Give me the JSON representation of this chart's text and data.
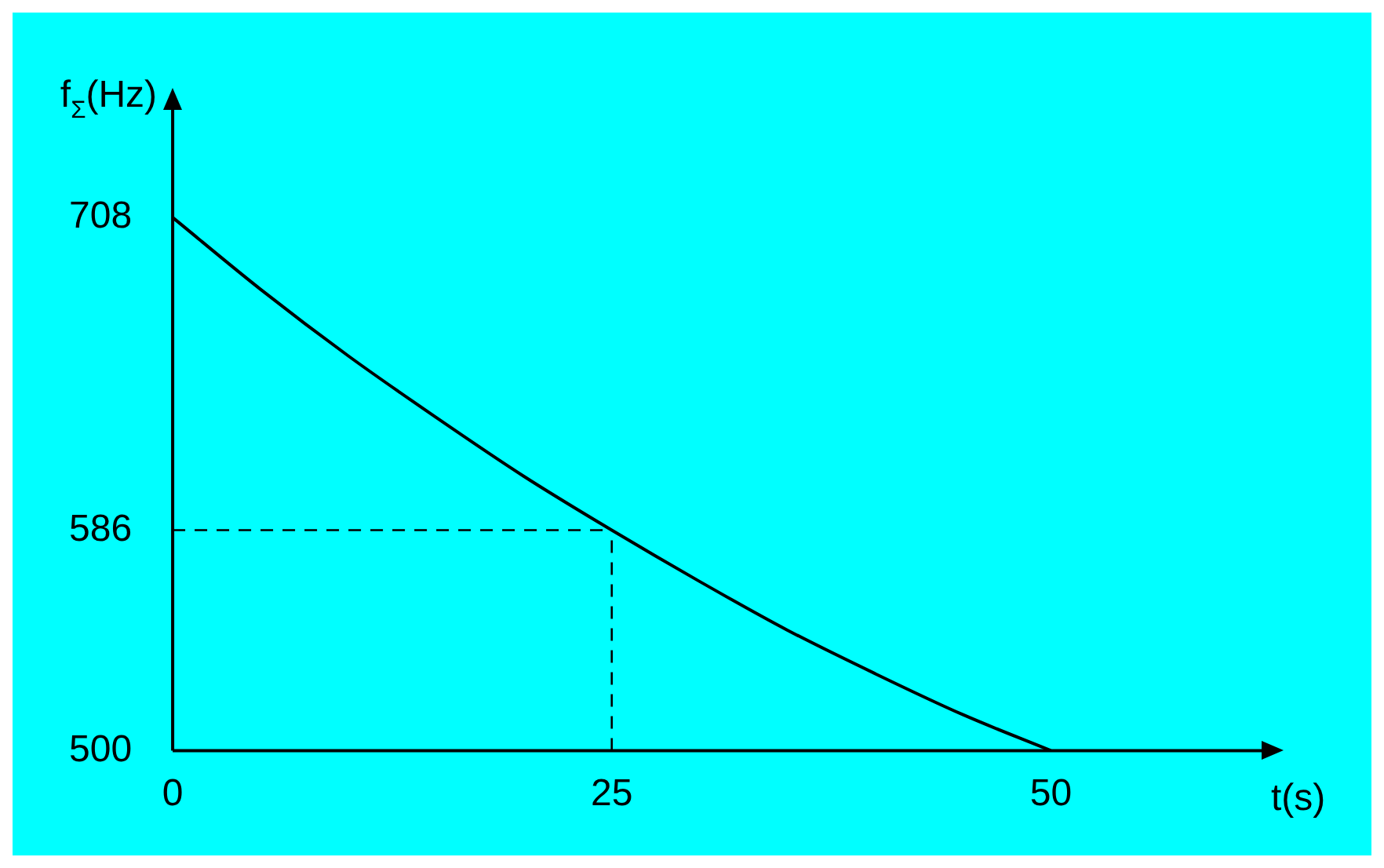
{
  "chart_data": {
    "type": "line",
    "xlabel": "t(s)",
    "ylabel": "f$_{Σ}$(Hz)",
    "x": [
      0,
      5,
      10,
      15,
      20,
      25,
      30,
      35,
      40,
      45,
      50
    ],
    "series": [
      {
        "color": "#000000",
        "values": [
          708,
          680,
          654,
          630,
          607,
          586,
          566,
          547,
          530,
          514,
          500
        ]
      }
    ],
    "xlim": [
      0,
      62
    ],
    "xticks": [
      0,
      25,
      50
    ],
    "ylim": [
      500,
      750
    ],
    "yticks": [
      500,
      586,
      708
    ],
    "ref_lines": [
      {
        "axis": "y",
        "value": 586,
        "line_style": "dashed",
        "color": "#000000"
      },
      {
        "axis": "x",
        "value": 25,
        "line_style": "dashed",
        "color": "#000000"
      }
    ],
    "grid": false,
    "legend": false,
    "marker": "none",
    "line_style": "solid"
  }
}
